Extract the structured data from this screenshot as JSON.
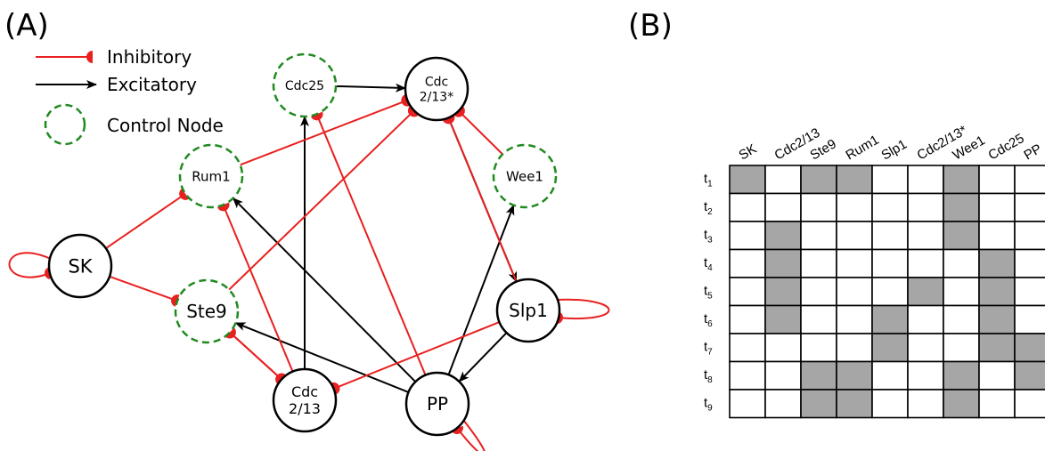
{
  "panel_a_label": "(A)",
  "panel_b_label": "(B)",
  "legend": {
    "inhibitory": "Inhibitory",
    "excitatory": "Excitatory",
    "control": "Control Node"
  },
  "colors": {
    "inhibitory": "#e8201f",
    "excitatory": "#000000",
    "control_node": "#1f8a1f",
    "active_cell": "#a6a6a6"
  },
  "nodes": [
    {
      "id": "cdc25",
      "label": [
        "Cdc25"
      ],
      "control": true
    },
    {
      "id": "cdc213s",
      "label": [
        "Cdc",
        "2/13*"
      ],
      "control": false
    },
    {
      "id": "rum1",
      "label": [
        "Rum1"
      ],
      "control": true
    },
    {
      "id": "wee1",
      "label": [
        "Wee1"
      ],
      "control": true
    },
    {
      "id": "sk",
      "label": [
        "SK"
      ],
      "control": false
    },
    {
      "id": "ste9",
      "label": [
        "Ste9"
      ],
      "control": true
    },
    {
      "id": "slp1",
      "label": [
        "Slp1"
      ],
      "control": false
    },
    {
      "id": "cdc213",
      "label": [
        "Cdc",
        "2/13"
      ],
      "control": false
    },
    {
      "id": "pp",
      "label": [
        "PP"
      ],
      "control": false
    }
  ],
  "edges": [
    {
      "from": "cdc25",
      "to": "cdc213s",
      "type": "excitatory"
    },
    {
      "from": "cdc213",
      "to": "cdc25",
      "type": "excitatory"
    },
    {
      "from": "cdc213s",
      "to": "slp1",
      "type": "excitatory"
    },
    {
      "from": "pp",
      "to": "rum1",
      "type": "excitatory"
    },
    {
      "from": "pp",
      "to": "ste9",
      "type": "excitatory"
    },
    {
      "from": "pp",
      "to": "wee1",
      "type": "excitatory"
    },
    {
      "from": "slp1",
      "to": "pp",
      "type": "excitatory"
    },
    {
      "from": "rum1",
      "to": "cdc213s",
      "type": "inhibitory"
    },
    {
      "from": "ste9",
      "to": "cdc213s",
      "type": "inhibitory"
    },
    {
      "from": "wee1",
      "to": "cdc213s",
      "type": "inhibitory"
    },
    {
      "from": "slp1",
      "to": "cdc213s",
      "type": "inhibitory"
    },
    {
      "from": "sk",
      "to": "rum1",
      "type": "inhibitory"
    },
    {
      "from": "sk",
      "to": "ste9",
      "type": "inhibitory"
    },
    {
      "from": "cdc213",
      "to": "rum1",
      "type": "inhibitory"
    },
    {
      "from": "cdc213",
      "to": "ste9",
      "type": "inhibitory"
    },
    {
      "from": "ste9",
      "to": "cdc213",
      "type": "inhibitory"
    },
    {
      "from": "pp",
      "to": "cdc25",
      "type": "inhibitory"
    },
    {
      "from": "slp1",
      "to": "cdc213",
      "type": "inhibitory"
    },
    {
      "from": "sk",
      "to": "sk",
      "type": "inhibitory"
    },
    {
      "from": "slp1",
      "to": "slp1",
      "type": "inhibitory"
    },
    {
      "from": "pp",
      "to": "pp",
      "type": "inhibitory"
    }
  ],
  "table": {
    "columns": [
      "SK",
      "Cdc2/13",
      "Ste9",
      "Rum1",
      "Slp1",
      "Cdc2/13*",
      "Wee1",
      "Cdc25",
      "PP"
    ],
    "rows": [
      {
        "label": "t",
        "sub": "1",
        "cells": [
          1,
          0,
          1,
          1,
          0,
          0,
          1,
          0,
          0
        ]
      },
      {
        "label": "t",
        "sub": "2",
        "cells": [
          0,
          0,
          0,
          0,
          0,
          0,
          1,
          0,
          0
        ]
      },
      {
        "label": "t",
        "sub": "3",
        "cells": [
          0,
          1,
          0,
          0,
          0,
          0,
          1,
          0,
          0
        ]
      },
      {
        "label": "t",
        "sub": "4",
        "cells": [
          0,
          1,
          0,
          0,
          0,
          0,
          0,
          1,
          0
        ]
      },
      {
        "label": "t",
        "sub": "5",
        "cells": [
          0,
          1,
          0,
          0,
          0,
          1,
          0,
          1,
          0
        ]
      },
      {
        "label": "t",
        "sub": "6",
        "cells": [
          0,
          1,
          0,
          0,
          1,
          0,
          0,
          1,
          0
        ]
      },
      {
        "label": "t",
        "sub": "7",
        "cells": [
          0,
          0,
          0,
          0,
          1,
          0,
          0,
          1,
          1
        ]
      },
      {
        "label": "t",
        "sub": "8",
        "cells": [
          0,
          0,
          1,
          1,
          0,
          0,
          1,
          0,
          1
        ]
      },
      {
        "label": "t",
        "sub": "9",
        "cells": [
          0,
          0,
          1,
          1,
          0,
          0,
          1,
          0,
          0
        ]
      }
    ]
  }
}
